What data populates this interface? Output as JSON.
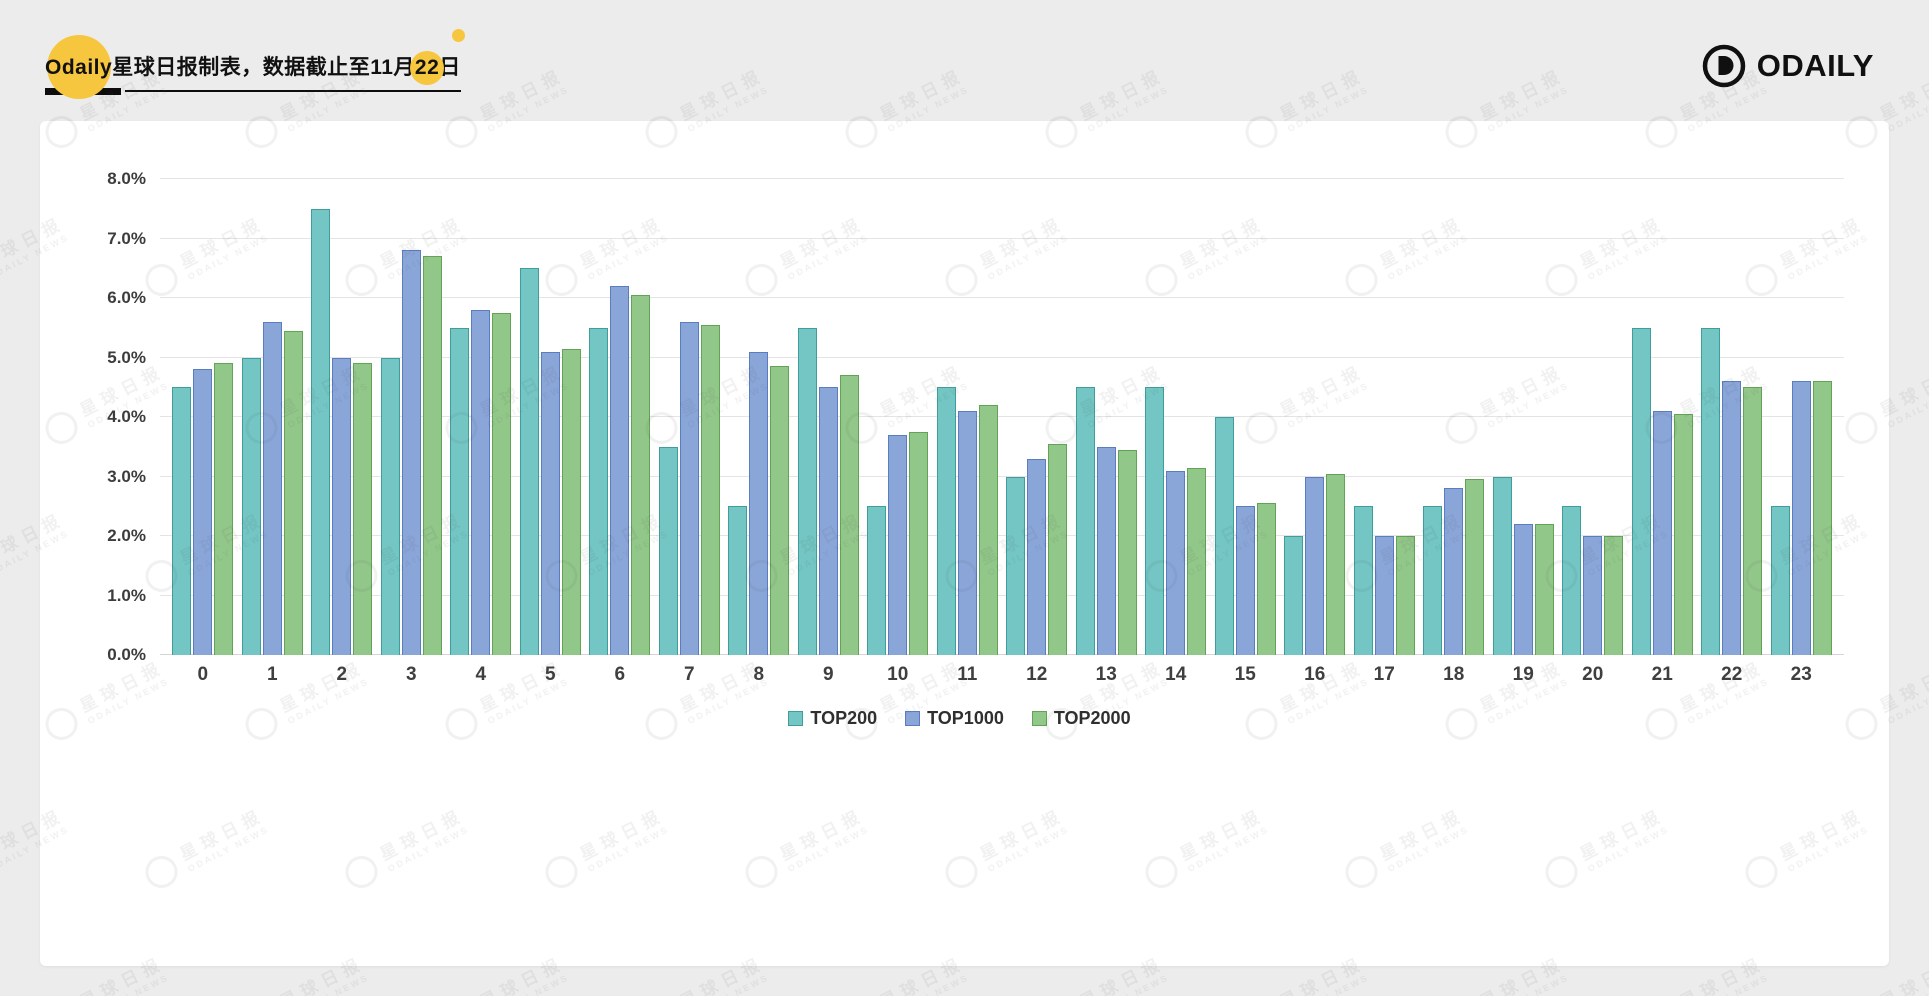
{
  "header": {
    "title_prefix": "Odaily",
    "title_mid": "星球日报制表，数据截止至11月",
    "title_day": "22",
    "title_suffix": "日",
    "logo_text": "ODAILY"
  },
  "watermark": {
    "line1": "星球日报",
    "line2": "ODAILY NEWS"
  },
  "colors": {
    "accent_yellow": "#f7c63f",
    "background": "#ececec",
    "card": "#ffffff"
  },
  "chart_data": {
    "type": "bar",
    "title": "",
    "xlabel": "",
    "ylabel": "",
    "ylim": [
      0,
      8
    ],
    "ytick_step": 1,
    "ytick_suffix": "%",
    "grid": true,
    "legend_position": "bottom",
    "categories": [
      "0",
      "1",
      "2",
      "3",
      "4",
      "5",
      "6",
      "7",
      "8",
      "9",
      "10",
      "11",
      "12",
      "13",
      "14",
      "15",
      "16",
      "17",
      "18",
      "19",
      "20",
      "21",
      "22",
      "23"
    ],
    "series": [
      {
        "name": "TOP200",
        "color": "#73c6c4",
        "border": "#3f9e9b",
        "values": [
          4.5,
          5.0,
          7.5,
          5.0,
          5.5,
          6.5,
          5.5,
          3.5,
          2.5,
          5.5,
          2.5,
          4.5,
          3.0,
          4.5,
          4.5,
          4.0,
          2.0,
          2.5,
          2.5,
          3.0,
          2.5,
          5.5,
          5.5,
          2.5
        ]
      },
      {
        "name": "TOP1000",
        "color": "#8aa6d9",
        "border": "#5a7cc0",
        "values": [
          4.8,
          5.6,
          5.0,
          6.8,
          5.8,
          5.1,
          6.2,
          5.6,
          5.1,
          4.5,
          3.7,
          4.1,
          3.3,
          3.5,
          3.1,
          2.5,
          3.0,
          2.0,
          2.8,
          2.2,
          2.0,
          4.1,
          4.6,
          4.6
        ]
      },
      {
        "name": "TOP2000",
        "color": "#92c78a",
        "border": "#62a356",
        "values": [
          4.9,
          5.45,
          4.9,
          6.7,
          5.75,
          5.15,
          6.05,
          5.55,
          4.85,
          4.7,
          3.75,
          4.2,
          3.55,
          3.45,
          3.15,
          2.55,
          3.05,
          2.0,
          2.95,
          2.2,
          2.0,
          4.05,
          4.5,
          4.6
        ]
      }
    ]
  }
}
